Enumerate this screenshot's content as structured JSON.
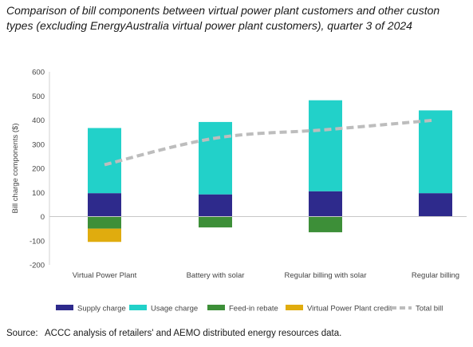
{
  "title_lines": [
    "Comparison of bill components between virtual power plant customers and other custon",
    "types (excluding EnergyAustralia virtual power plant customers), quarter 3 of 2024"
  ],
  "source": {
    "label": "Source:",
    "text": "ACCC analysis of retailers' and AEMO distributed energy resources data."
  },
  "chart_data": {
    "type": "bar",
    "stacked": true,
    "title": "Comparison of bill components between virtual power plant customers and other custon types (excluding EnergyAustralia virtual power plant customers), quarter 3 of 2024",
    "xlabel": "",
    "ylabel": "Bill charge components ($)",
    "ylim": [
      -200,
      600
    ],
    "yticks": [
      -200,
      -100,
      0,
      100,
      200,
      300,
      400,
      500,
      600
    ],
    "categories": [
      "Virtual Power Plant",
      "Battery with solar",
      "Regular billing with solar",
      "Regular billing"
    ],
    "series": [
      {
        "name": "Supply charge",
        "type": "bar",
        "color": "#2e2a8c",
        "values": [
          97,
          92,
          105,
          97
        ]
      },
      {
        "name": "Usage charge",
        "type": "bar",
        "color": "#22d1c9",
        "values": [
          270,
          300,
          377,
          343
        ]
      },
      {
        "name": "Feed-in rebate",
        "type": "bar",
        "color": "#3d8f38",
        "values": [
          -50,
          -45,
          -65,
          0
        ]
      },
      {
        "name": "Virtual Power Plant credit",
        "type": "bar",
        "color": "#e0ac0e",
        "values": [
          -55,
          0,
          0,
          0
        ]
      },
      {
        "name": "Total bill",
        "type": "line",
        "style": "dashed",
        "color": "#bdbdbd",
        "values": [
          215,
          325,
          360,
          400
        ]
      }
    ],
    "legend_position": "bottom",
    "grid": false
  }
}
